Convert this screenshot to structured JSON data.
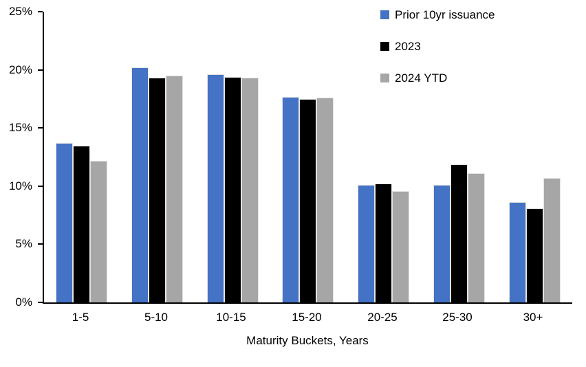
{
  "chart_data": {
    "type": "bar",
    "title": "",
    "xlabel": "Maturity Buckets, Years",
    "ylabel": "",
    "ylim": [
      0,
      25
    ],
    "yticks": [
      0,
      5,
      10,
      15,
      20,
      25
    ],
    "ytick_suffix": "%",
    "grid": false,
    "legend_position": "top-right",
    "axis_color": "#000000",
    "categories": [
      "1-5",
      "5-10",
      "10-15",
      "15-20",
      "20-25",
      "25-30",
      "30+"
    ],
    "series": [
      {
        "name": "Prior 10yr issuance",
        "color": "#4472C4",
        "values": [
          13.7,
          20.2,
          19.6,
          17.7,
          10.1,
          10.1,
          8.6
        ]
      },
      {
        "name": "2023",
        "color": "#000000",
        "values": [
          13.5,
          19.3,
          19.4,
          17.5,
          10.2,
          11.9,
          8.1
        ]
      },
      {
        "name": "2024 YTD",
        "color": "#A6A6A6",
        "values": [
          12.2,
          19.5,
          19.3,
          17.6,
          9.6,
          11.1,
          10.7
        ]
      }
    ]
  }
}
